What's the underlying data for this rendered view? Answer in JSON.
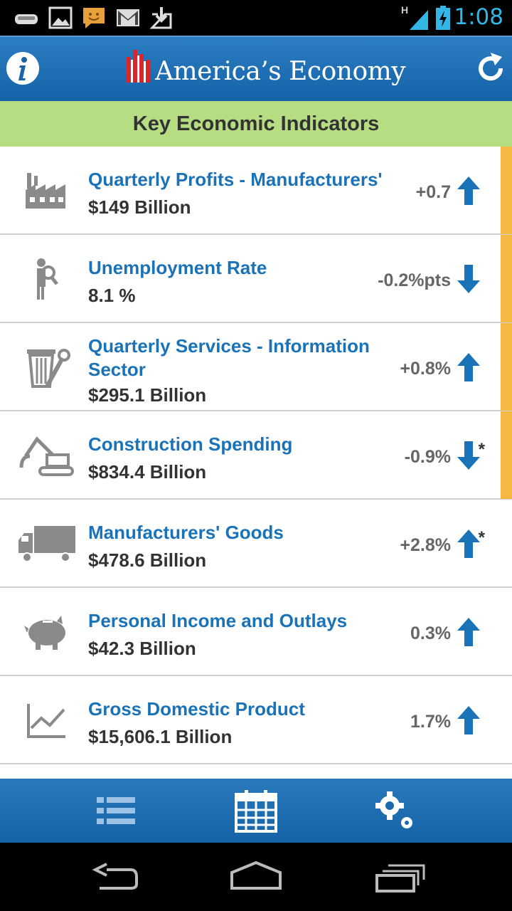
{
  "status_bar": {
    "time": "1:08",
    "network": "H"
  },
  "app": {
    "title": "America’s Economy"
  },
  "subheader": "Key Economic Indicators",
  "indicators": [
    {
      "title": "Quarterly Profits - Manufacturers'",
      "value": "$149 Billion",
      "change": "+0.7",
      "direction": "up",
      "asterisk": "",
      "highlight": true,
      "icon": "factory-icon"
    },
    {
      "title": "Unemployment Rate",
      "value": "8.1 %",
      "change": "-0.2%pts",
      "direction": "down",
      "asterisk": "",
      "highlight": true,
      "icon": "job-seeker-icon"
    },
    {
      "title": "Quarterly Services - Information Sector",
      "value": "$295.1 Billion",
      "change": "+0.8%",
      "direction": "up",
      "asterisk": "",
      "highlight": true,
      "icon": "services-tools-icon"
    },
    {
      "title": "Construction Spending",
      "value": "$834.4 Billion",
      "change": "-0.9%",
      "direction": "down",
      "asterisk": "*",
      "highlight": true,
      "icon": "excavator-icon"
    },
    {
      "title": "Manufacturers' Goods",
      "value": "$478.6 Billion",
      "change": "+2.8%",
      "direction": "up",
      "asterisk": "*",
      "highlight": false,
      "icon": "truck-icon"
    },
    {
      "title": "Personal Income and Outlays",
      "value": "$42.3 Billion",
      "change": "0.3%",
      "direction": "up",
      "asterisk": "",
      "highlight": false,
      "icon": "piggy-bank-icon"
    },
    {
      "title": "Gross Domestic Product",
      "value": "$15,606.1 Billion",
      "change": "1.7%",
      "direction": "up",
      "asterisk": "",
      "highlight": false,
      "icon": "line-chart-icon"
    }
  ],
  "colors": {
    "accent_blue": "#1a73b9",
    "highlight_orange": "#f4b843",
    "subheader_green": "#b6dd82"
  }
}
